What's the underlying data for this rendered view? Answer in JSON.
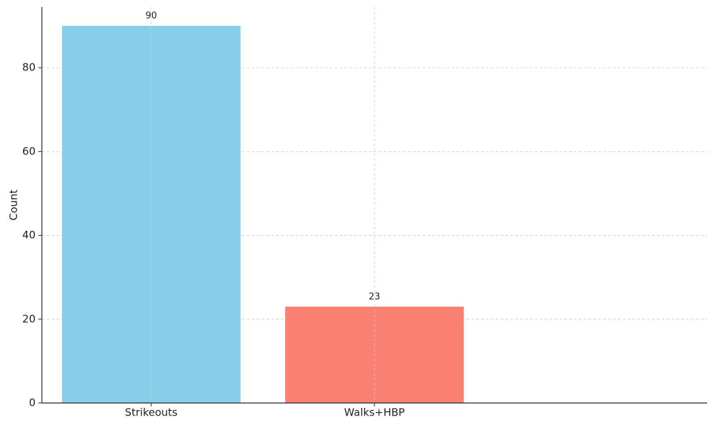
{
  "chart_data": {
    "type": "bar",
    "y_label": "Count",
    "categories": [
      "Strikeouts",
      "Walks+HBP"
    ],
    "values": [
      90,
      23
    ],
    "colors": [
      "#87ceeb",
      "#fa8072"
    ],
    "ylim": [
      0,
      94.5
    ],
    "yticks": [
      0,
      20,
      40,
      60,
      80
    ],
    "grid": true,
    "data_labels": true
  }
}
